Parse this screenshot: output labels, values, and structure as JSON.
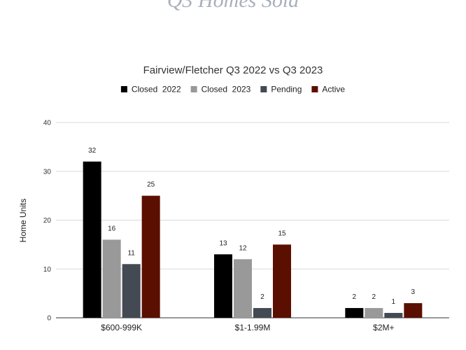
{
  "page": {
    "heading": "Q3 Homes Sold"
  },
  "chart_data": {
    "type": "bar",
    "title": "Fairview/Fletcher Q3 2022 vs Q3 2023",
    "xlabel": "",
    "ylabel": "Home Units",
    "ylim": [
      0,
      40
    ],
    "yticks": [
      0,
      10,
      20,
      30,
      40
    ],
    "grid": true,
    "legend_position": "top",
    "categories": [
      "$600-999K",
      "$1-1.99M",
      "$2M+"
    ],
    "series": [
      {
        "name": "Closed  2022",
        "color": "#000000",
        "values": [
          32,
          13,
          2
        ]
      },
      {
        "name": "Closed  2023",
        "color": "#999999",
        "values": [
          16,
          12,
          2
        ]
      },
      {
        "name": "Pending",
        "color": "#434a53",
        "values": [
          11,
          2,
          1
        ]
      },
      {
        "name": "Active",
        "color": "#5b0f00",
        "values": [
          25,
          15,
          3
        ]
      }
    ]
  }
}
